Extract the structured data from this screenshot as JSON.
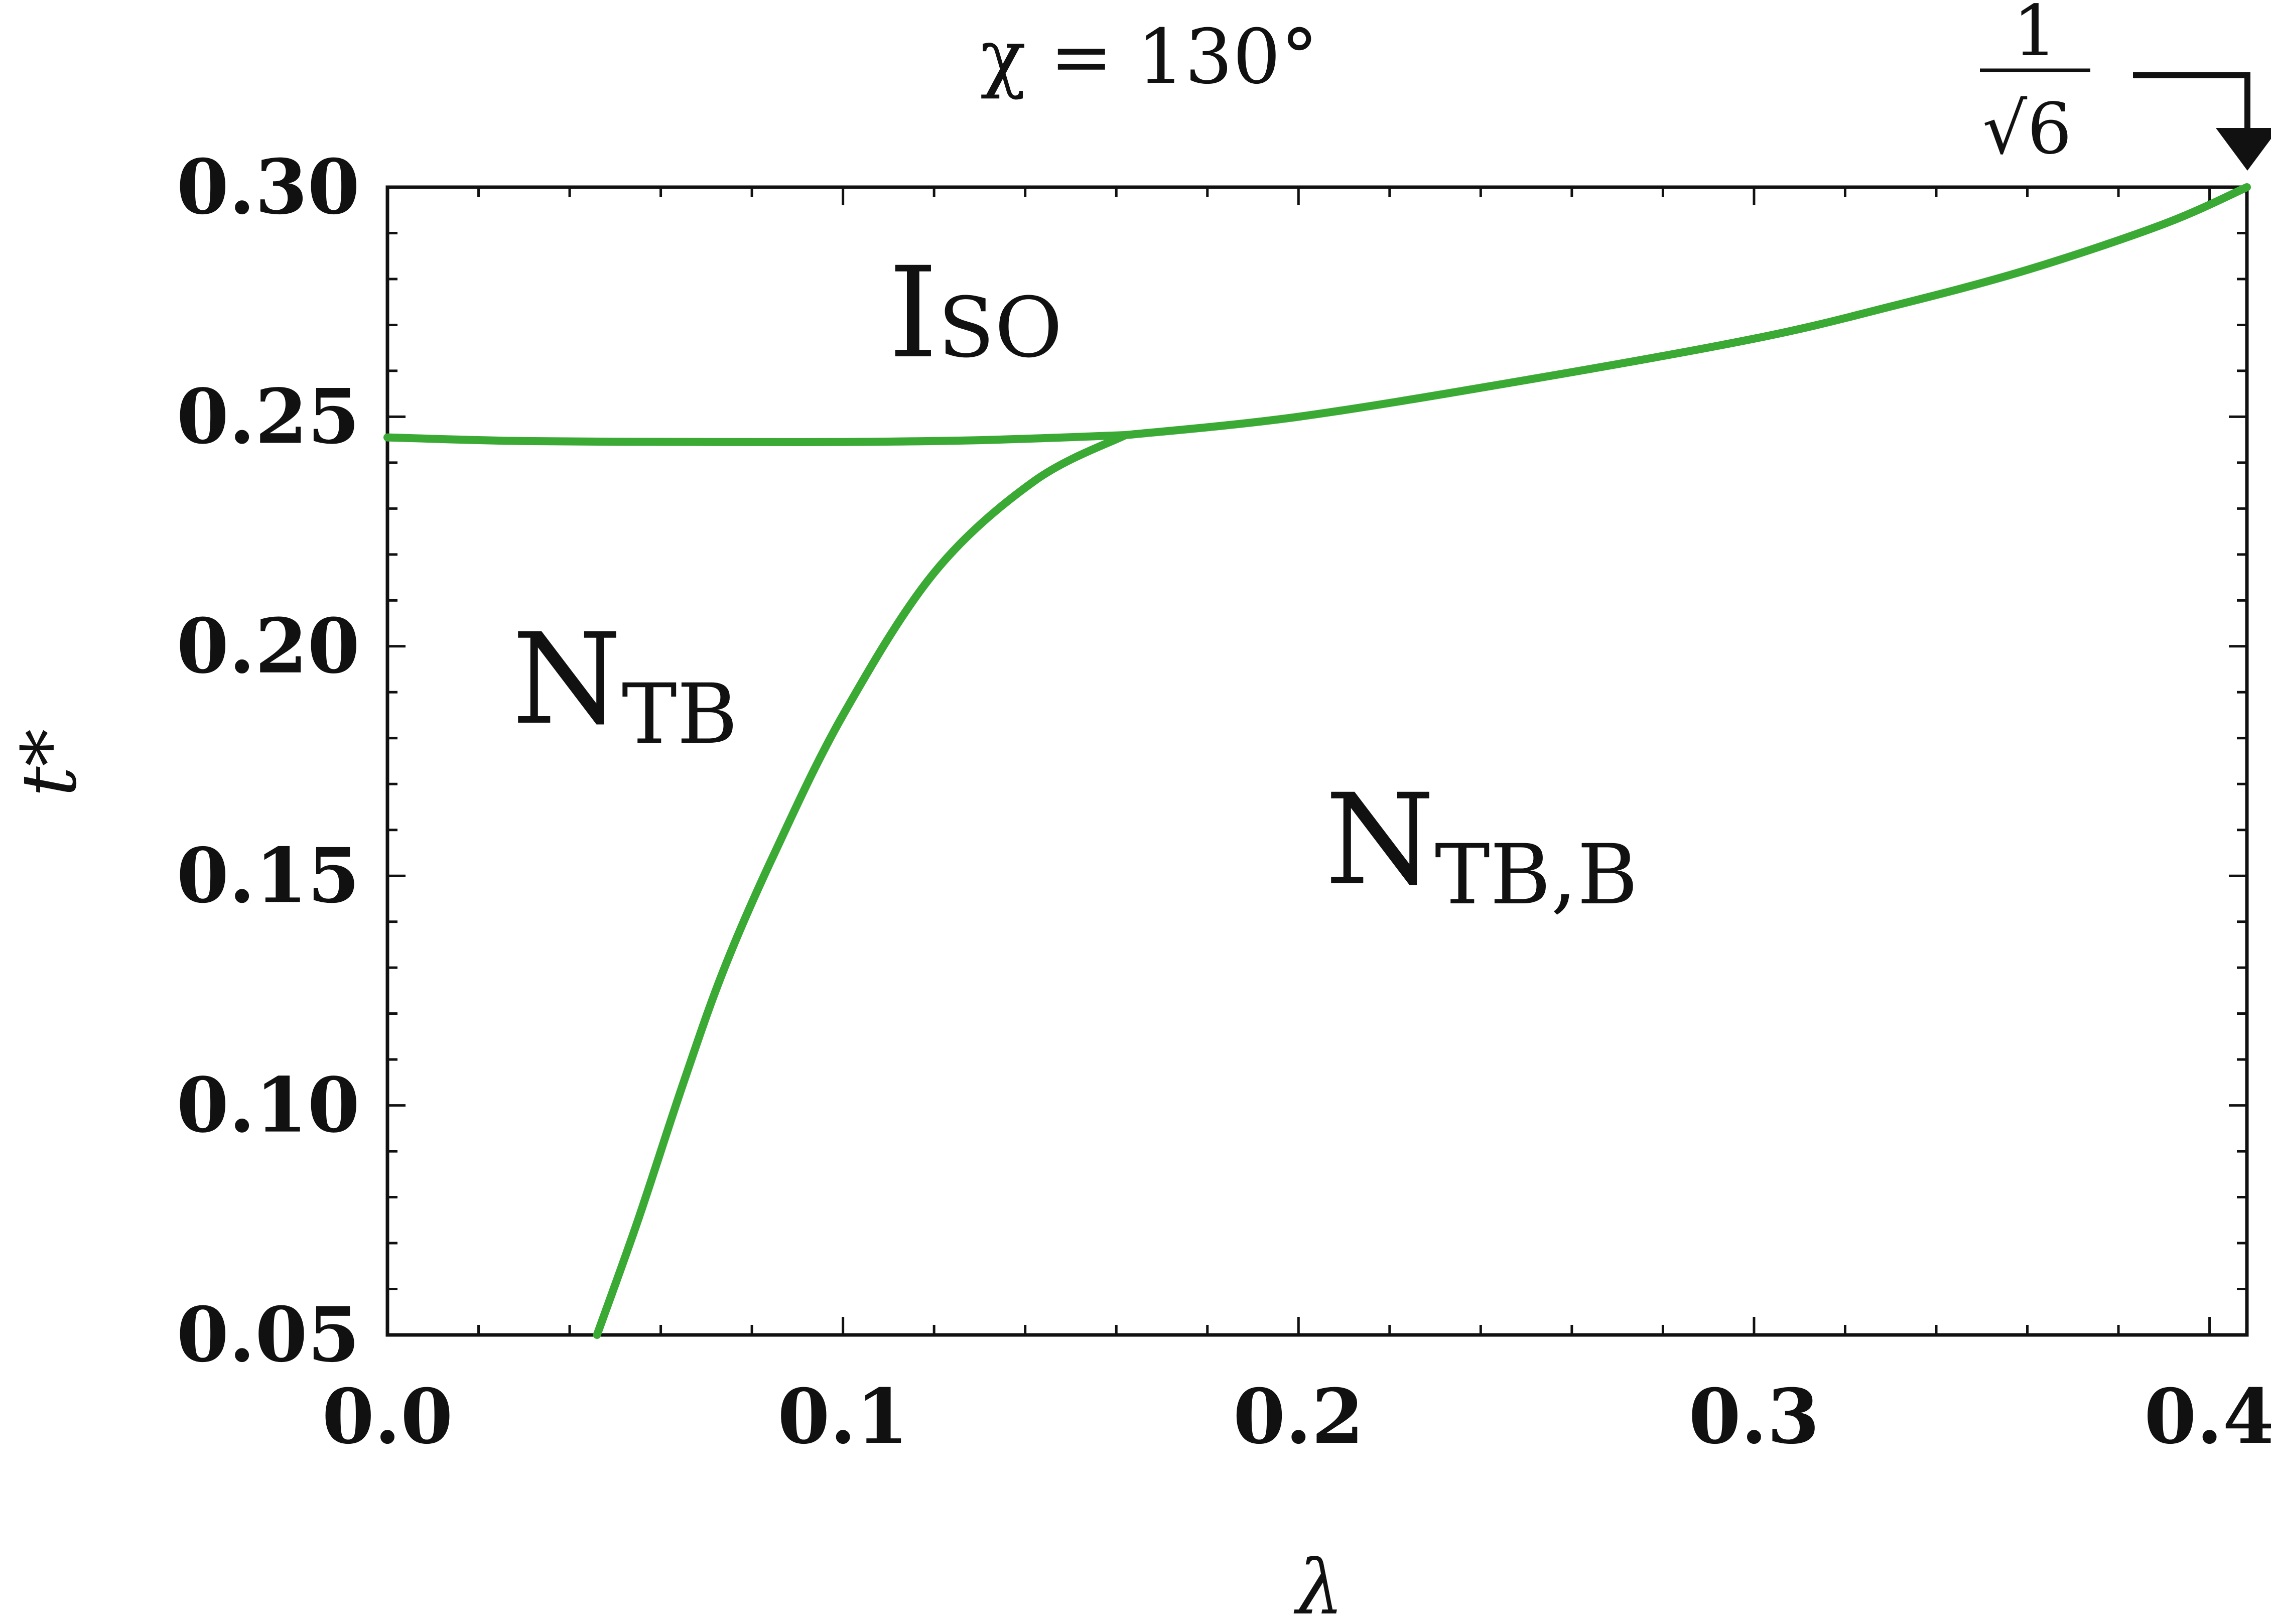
{
  "chart_data": {
    "type": "line",
    "title": "χ = 130°",
    "xlabel": "λ",
    "ylabel": "t*",
    "xlim": [
      0.0,
      0.4082
    ],
    "ylim": [
      0.05,
      0.3
    ],
    "x_ticks": [
      "0.0",
      "0.1",
      "0.2",
      "0.3",
      "0.4"
    ],
    "y_ticks": [
      "0.05",
      "0.10",
      "0.15",
      "0.20",
      "0.25",
      "0.30"
    ],
    "grid": false,
    "series_color": "#3aaa35",
    "series": [
      {
        "x": [
          0.0,
          0.03,
          0.07,
          0.1,
          0.13,
          0.162
        ],
        "y": [
          0.2455,
          0.2447,
          0.2445,
          0.2445,
          0.2449,
          0.246
        ]
      },
      {
        "x": [
          0.162,
          0.2,
          0.25,
          0.3,
          0.33,
          0.36,
          0.39,
          0.4082
        ],
        "y": [
          0.246,
          0.25,
          0.258,
          0.267,
          0.274,
          0.282,
          0.292,
          0.3
        ]
      },
      {
        "x": [
          0.046,
          0.055,
          0.065,
          0.074,
          0.085,
          0.1,
          0.12,
          0.142,
          0.162
        ],
        "y": [
          0.05,
          0.075,
          0.105,
          0.13,
          0.155,
          0.185,
          0.216,
          0.236,
          0.246
        ]
      }
    ],
    "regions": {
      "iso": {
        "big": "I",
        "small": "SO"
      },
      "ntb": {
        "big": "N",
        "small": "TB"
      },
      "ntbb": {
        "big": "N",
        "small": "TB,B"
      }
    },
    "annotation": {
      "numerator": "1",
      "radical": "√",
      "radicand": "6",
      "value": 0.4082
    }
  }
}
